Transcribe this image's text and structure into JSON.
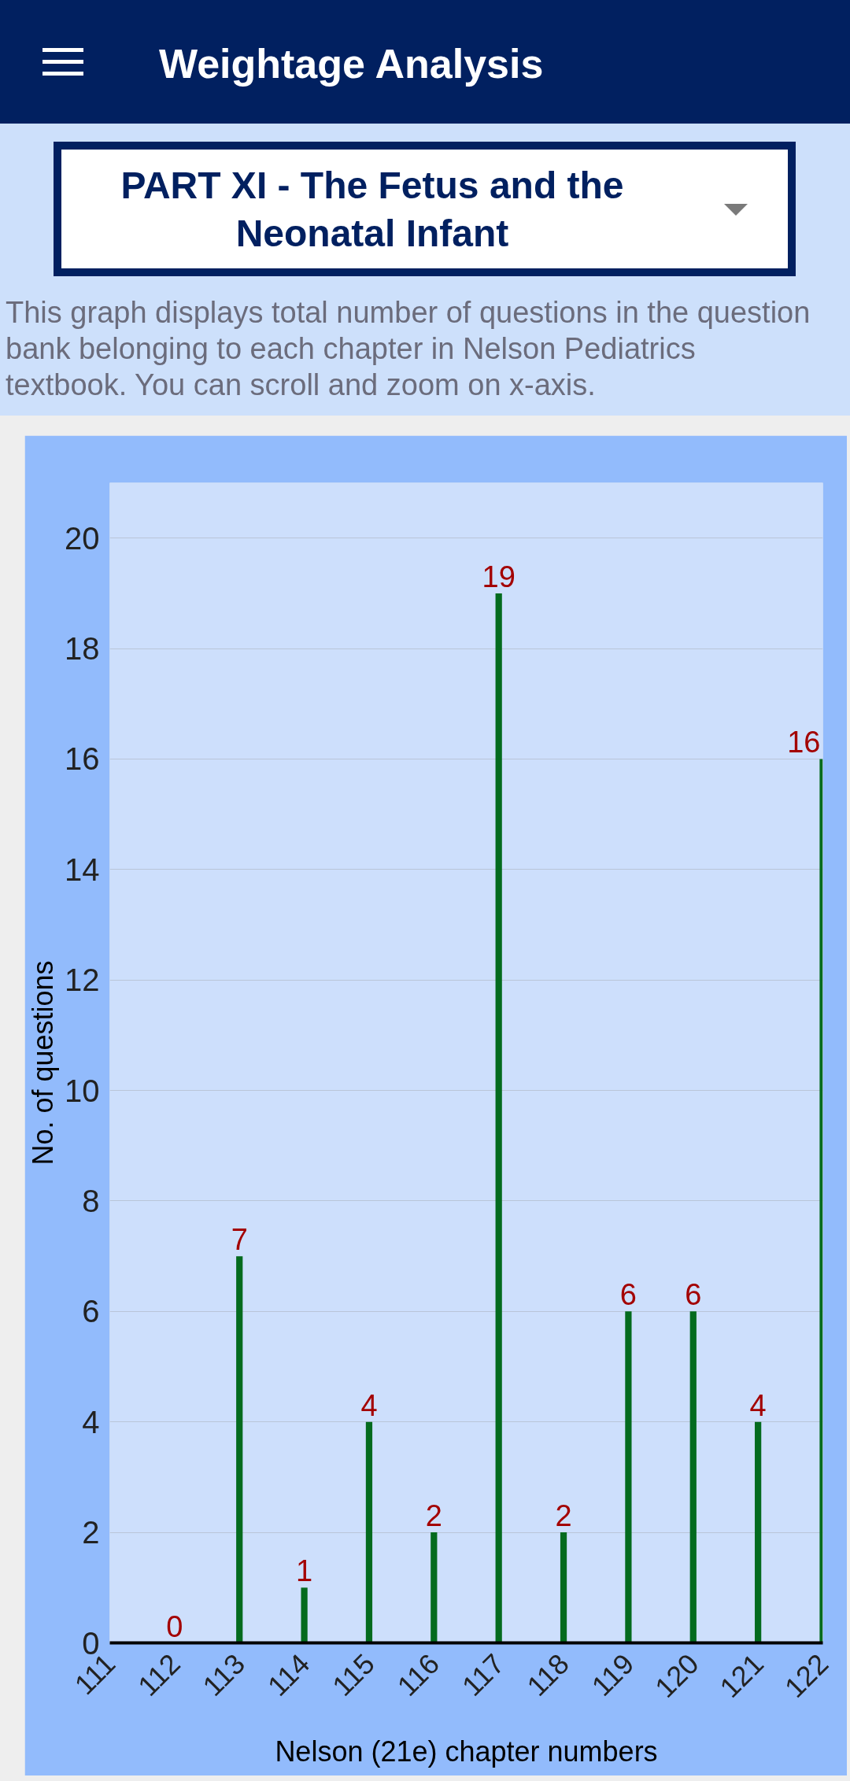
{
  "chart_data": {
    "type": "bar",
    "title": "Weightage Analysis",
    "subtitle": "PART XI - The Fetus and the Neonatal Infant",
    "annotations": [
      "This graph displays total number of questions in the question bank belonging to each chapter in Nelson Pediatrics textbook. You can scroll and zoom on x-axis."
    ],
    "xlabel": "Nelson (21e) chapter numbers",
    "ylabel": "No. of questions",
    "x": [
      112,
      113,
      114,
      115,
      116,
      117,
      118,
      119,
      120,
      121,
      122
    ],
    "values": [
      0,
      7,
      1,
      4,
      2,
      19,
      2,
      6,
      6,
      4,
      16
    ],
    "color": "#046b1e",
    "xlim": [
      111,
      122
    ],
    "xticks": [
      111,
      112,
      113,
      114,
      115,
      116,
      117,
      118,
      119,
      120,
      121,
      122
    ],
    "ylim": [
      0,
      21
    ],
    "yticks": [
      0,
      2,
      4,
      6,
      8,
      10,
      12,
      14,
      16,
      18,
      20
    ],
    "grid": "y",
    "data_labels": true
  }
}
